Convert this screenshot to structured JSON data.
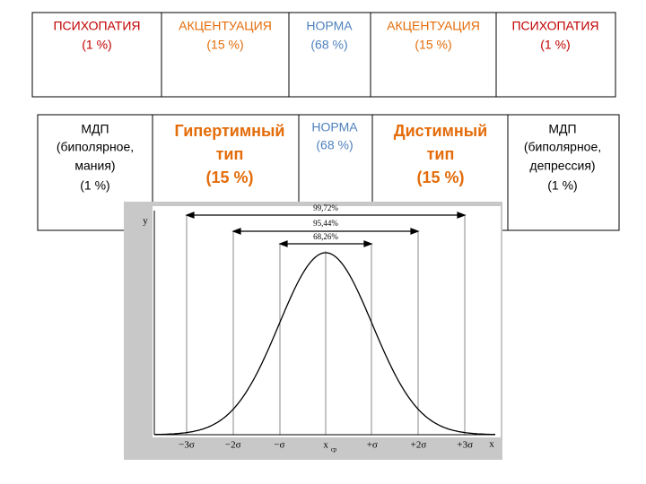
{
  "table_top": {
    "cells": [
      [
        "ПСИХОПАТИЯ",
        "(1 %)"
      ],
      [
        "АКЦЕНТУАЦИЯ",
        "(15 %)"
      ],
      [
        "НОРМА",
        "(68 %)"
      ],
      [
        "АКЦЕНТУАЦИЯ",
        "(15 %)"
      ],
      [
        "ПСИХОПАТИЯ",
        "(1 %)"
      ]
    ]
  },
  "table_bottom": {
    "cells": [
      [
        "МДП",
        "(биполярное,",
        "мания)",
        "(1 %)"
      ],
      [
        "Гипертимный",
        "тип",
        "(15 %)"
      ],
      [
        "НОРМА",
        "(68 %)"
      ],
      [
        "Дистимный",
        "тип",
        "(15 %)"
      ],
      [
        "МДП",
        "(биполярное,",
        "депрессия)",
        "(1 %)"
      ]
    ]
  },
  "figure": {
    "y_axis_label": "y",
    "x_axis_label": "x",
    "intervals": [
      "99,72%",
      "95,44%",
      "68,26%"
    ],
    "x_labels": [
      "−3σ",
      "−2σ",
      "−σ",
      "x",
      "+σ",
      "+2σ",
      "+3σ"
    ],
    "mean_subscript": "ср"
  }
}
